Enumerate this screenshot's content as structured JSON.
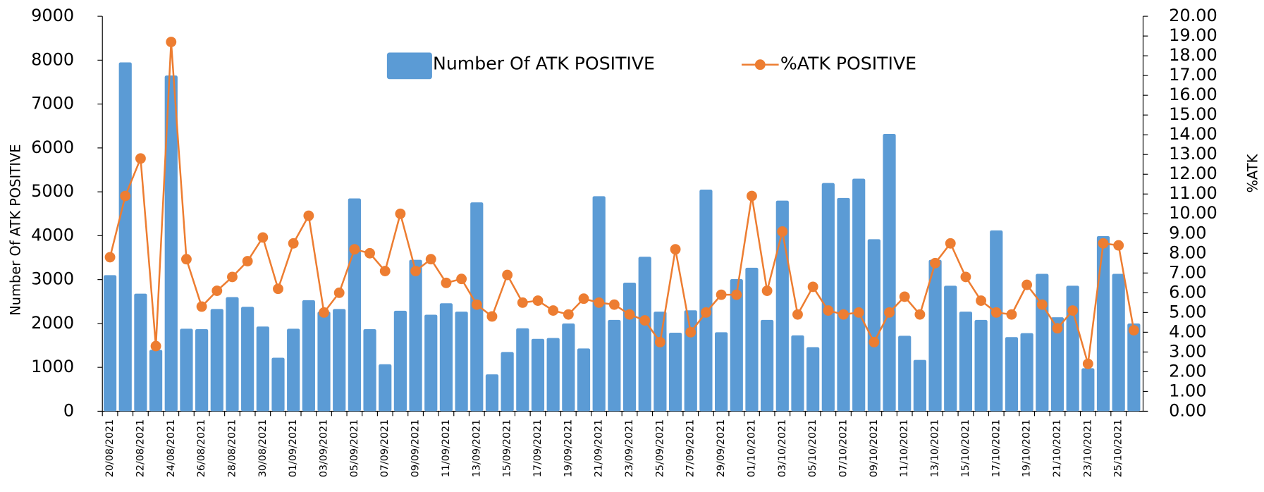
{
  "chart_data": {
    "type": "bar_line",
    "categories": [
      "20/08/2021",
      null,
      "22/08/2021",
      null,
      "24/08/2021",
      null,
      "26/08/2021",
      null,
      "28/08/2021",
      null,
      "30/08/2021",
      null,
      "01/09/2021",
      null,
      "03/09/2021",
      null,
      "05/09/2021",
      null,
      "07/09/2021",
      null,
      "09/09/2021",
      null,
      "11/09/2021",
      null,
      "13/09/2021",
      null,
      "15/09/2021",
      null,
      "17/09/2021",
      null,
      "19/09/2021",
      null,
      "21/09/2021",
      null,
      "23/09/2021",
      null,
      "25/09/2021",
      null,
      "27/09/2021",
      null,
      "29/09/2021",
      null,
      "01/10/2021",
      null,
      "03/10/2021",
      null,
      "05/10/2021",
      null,
      "07/10/2021",
      null,
      "09/10/2021",
      null,
      "11/10/2021",
      null,
      "13/10/2021",
      null,
      "15/10/2021",
      null,
      "17/10/2021",
      null,
      "19/10/2021",
      null,
      "21/10/2021",
      null,
      "23/10/2021",
      null,
      "25/10/2021",
      null
    ],
    "series": [
      {
        "name": "Number Of ATK POSITIVE",
        "type": "bar",
        "color": "#5b9bd5",
        "values": [
          3100,
          7950,
          2680,
          1400,
          7650,
          1880,
          1870,
          2330,
          2600,
          2380,
          1930,
          1220,
          1880,
          2530,
          2270,
          2330,
          4850,
          1870,
          1070,
          2290,
          3450,
          2200,
          2460,
          2270,
          4760,
          840,
          1350,
          1890,
          1650,
          1670,
          2000,
          1430,
          4900,
          2080,
          2930,
          3520,
          2270,
          1790,
          2300,
          5050,
          1800,
          3010,
          3270,
          2080,
          4800,
          1730,
          1460,
          5200,
          4860,
          5300,
          3920,
          6320,
          1720,
          1170,
          3450,
          2860,
          2270,
          2080,
          4120,
          1690,
          1780,
          3130,
          2140,
          2860,
          980,
          3990,
          3130,
          2000
        ]
      },
      {
        "name": "%ATK POSITIVE",
        "type": "line",
        "axis": "y2",
        "color": "#ed7d31",
        "values": [
          7.8,
          10.9,
          12.8,
          3.3,
          18.7,
          7.7,
          5.3,
          6.1,
          6.8,
          7.6,
          8.8,
          6.2,
          8.5,
          9.9,
          5.0,
          6.0,
          8.2,
          8.0,
          7.1,
          10.0,
          7.1,
          7.7,
          6.5,
          6.7,
          5.4,
          4.8,
          6.9,
          5.5,
          5.6,
          5.1,
          4.9,
          5.7,
          5.5,
          5.4,
          4.9,
          4.6,
          3.5,
          8.2,
          4.0,
          5.0,
          5.9,
          5.9,
          10.9,
          6.1,
          9.1,
          4.9,
          6.3,
          5.1,
          4.9,
          5.0,
          3.5,
          5.0,
          5.8,
          4.9,
          7.5,
          8.5,
          6.8,
          5.6,
          5.0,
          4.9,
          6.4,
          5.4,
          4.2,
          5.1,
          2.4,
          8.5,
          8.4,
          4.1
        ]
      }
    ],
    "ylabel": "Number Of ATK POSITIVE",
    "y2label": "%ATK",
    "ylim": [
      0,
      9000
    ],
    "yticks": [
      0,
      1000,
      2000,
      3000,
      4000,
      5000,
      6000,
      7000,
      8000,
      9000
    ],
    "y2lim": [
      0,
      20
    ],
    "y2ticks": [
      {
        "value": 0,
        "label": "0.00"
      },
      {
        "value": 1,
        "label": "1.00"
      },
      {
        "value": 2,
        "label": "2.00"
      },
      {
        "value": 3,
        "label": "3.00"
      },
      {
        "value": 4,
        "label": "4.00"
      },
      {
        "value": 5,
        "label": "5.00"
      },
      {
        "value": 6,
        "label": "6.00"
      },
      {
        "value": 7,
        "label": "7.00"
      },
      {
        "value": 8,
        "label": "8.00"
      },
      {
        "value": 9,
        "label": "9.00"
      },
      {
        "value": 10,
        "label": "10.00"
      },
      {
        "value": 11,
        "label": "11.00"
      },
      {
        "value": 12,
        "label": "12.00"
      },
      {
        "value": 13,
        "label": "13.00"
      },
      {
        "value": 14,
        "label": "14.00"
      },
      {
        "value": 15,
        "label": "15.00"
      },
      {
        "value": 16,
        "label": "16.00"
      },
      {
        "value": 17,
        "label": "17.00"
      },
      {
        "value": 18,
        "label": "18.00"
      },
      {
        "value": 19,
        "label": "19.00"
      },
      {
        "value": 20,
        "label": "20.00"
      }
    ],
    "grid": false,
    "legend": "top"
  }
}
